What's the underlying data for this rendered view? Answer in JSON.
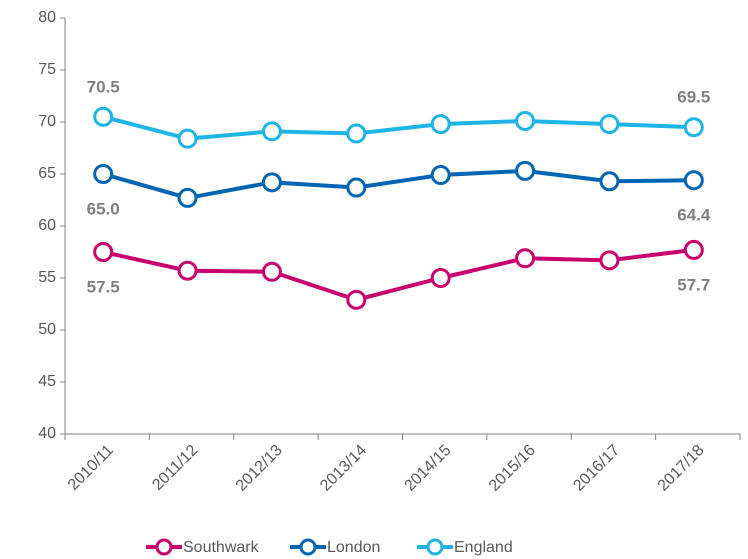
{
  "chart_data": {
    "type": "line",
    "categories": [
      "2010/11",
      "2011/12",
      "2012/13",
      "2013/14",
      "2014/15",
      "2015/16",
      "2016/17",
      "2017/18"
    ],
    "series": [
      {
        "name": "Southwark",
        "color": "#c8006e",
        "values": [
          57.5,
          55.7,
          55.6,
          52.9,
          55.0,
          56.9,
          56.7,
          57.7
        ],
        "value_labels": [
          "57.5",
          null,
          null,
          null,
          null,
          null,
          null,
          "57.7"
        ]
      },
      {
        "name": "London",
        "color": "#0066b3",
        "values": [
          65.0,
          62.7,
          64.2,
          63.7,
          64.9,
          65.3,
          64.3,
          64.4
        ],
        "value_labels": [
          "65.0",
          null,
          null,
          null,
          null,
          null,
          null,
          "64.4"
        ]
      },
      {
        "name": "England",
        "color": "#1eb4e6",
        "values": [
          70.5,
          68.4,
          69.1,
          68.9,
          69.8,
          70.1,
          69.8,
          69.5
        ],
        "value_labels": [
          "70.5",
          null,
          null,
          null,
          null,
          null,
          null,
          "69.5"
        ]
      }
    ],
    "ylim": [
      40,
      80
    ],
    "yticks": [
      40,
      45,
      50,
      55,
      60,
      65,
      70,
      75,
      80
    ],
    "grid": false,
    "legend": "bottom"
  }
}
